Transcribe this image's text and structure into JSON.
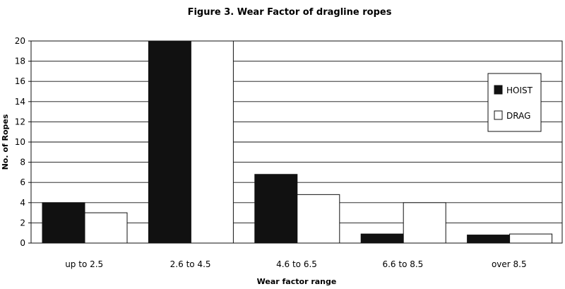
{
  "chart_data": {
    "type": "bar",
    "title": "Figure 3. Wear Factor of dragline ropes",
    "xlabel": "Wear factor range",
    "ylabel": "No. of Ropes",
    "categories": [
      "up to 2.5",
      "2.6 to 4.5",
      "4.6 to 6.5",
      "6.6 to 8.5",
      "over 8.5"
    ],
    "series": [
      {
        "name": "HOIST",
        "values": [
          4,
          20,
          6.8,
          0.9,
          0.8
        ],
        "color": "#111111"
      },
      {
        "name": "DRAG",
        "values": [
          3,
          20,
          4.8,
          4,
          0.9
        ],
        "color": "#ffffff"
      }
    ],
    "ylim": [
      0,
      20
    ],
    "yticks": [
      0,
      2,
      4,
      6,
      8,
      10,
      12,
      14,
      16,
      18,
      20
    ],
    "grid": true,
    "legend_position": "right"
  }
}
